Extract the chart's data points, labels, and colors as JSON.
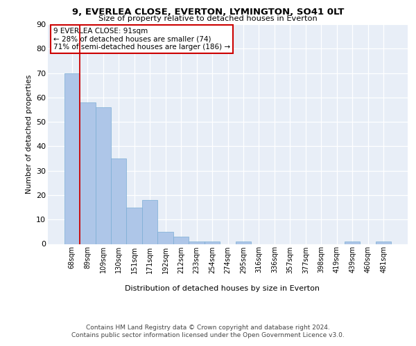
{
  "title1": "9, EVERLEA CLOSE, EVERTON, LYMINGTON, SO41 0LT",
  "title2": "Size of property relative to detached houses in Everton",
  "xlabel": "Distribution of detached houses by size in Everton",
  "ylabel": "Number of detached properties",
  "categories": [
    "68sqm",
    "89sqm",
    "109sqm",
    "130sqm",
    "151sqm",
    "171sqm",
    "192sqm",
    "212sqm",
    "233sqm",
    "254sqm",
    "274sqm",
    "295sqm",
    "316sqm",
    "336sqm",
    "357sqm",
    "377sqm",
    "398sqm",
    "419sqm",
    "439sqm",
    "460sqm",
    "481sqm"
  ],
  "values": [
    70,
    58,
    56,
    35,
    15,
    18,
    5,
    3,
    1,
    1,
    0,
    1,
    0,
    0,
    0,
    0,
    0,
    0,
    1,
    0,
    1
  ],
  "bar_color": "#aec6e8",
  "bar_edge_color": "#7aadd4",
  "vline_color": "#cc0000",
  "annotation_lines": [
    "9 EVERLEA CLOSE: 91sqm",
    "← 28% of detached houses are smaller (74)",
    "71% of semi-detached houses are larger (186) →"
  ],
  "annotation_box_color": "#cc0000",
  "ylim": [
    0,
    90
  ],
  "yticks": [
    0,
    10,
    20,
    30,
    40,
    50,
    60,
    70,
    80,
    90
  ],
  "background_color": "#e8eef7",
  "grid_color": "#ffffff",
  "footer1": "Contains HM Land Registry data © Crown copyright and database right 2024.",
  "footer2": "Contains public sector information licensed under the Open Government Licence v3.0."
}
